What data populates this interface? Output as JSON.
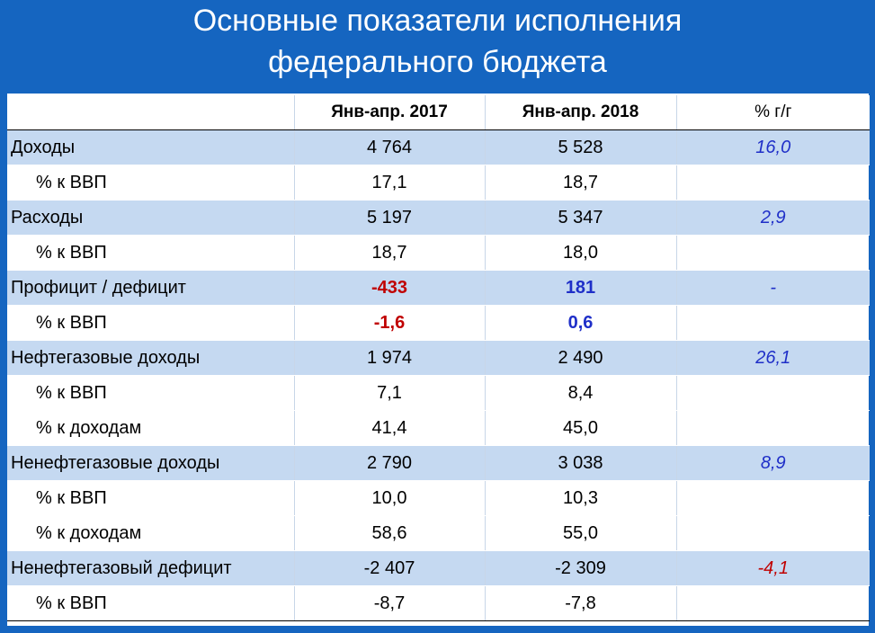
{
  "title": {
    "line1": "Основные показатели исполнения",
    "line2": "федерального бюджета"
  },
  "header": {
    "col1": "Янв-апр. 2017",
    "col2": "Янв-апр. 2018",
    "col3": "% г/г"
  },
  "rows": [
    {
      "label": "Доходы",
      "v2017": "4 764",
      "v2018": "5 528",
      "yoy": "16,0"
    },
    {
      "label": "% к ВВП",
      "v2017": "17,1",
      "v2018": "18,7",
      "yoy": ""
    },
    {
      "label": "Расходы",
      "v2017": "5 197",
      "v2018": "5 347",
      "yoy": "2,9"
    },
    {
      "label": "% к ВВП",
      "v2017": "18,7",
      "v2018": "18,0",
      "yoy": ""
    },
    {
      "label": "Профицит / дефицит",
      "v2017": "-433",
      "v2018": "181",
      "yoy": "-"
    },
    {
      "label": "% к ВВП",
      "v2017": "-1,6",
      "v2018": "0,6",
      "yoy": ""
    },
    {
      "label": "Нефтегазовые доходы",
      "v2017": "1 974",
      "v2018": "2 490",
      "yoy": "26,1"
    },
    {
      "label": "% к ВВП",
      "v2017": "7,1",
      "v2018": "8,4",
      "yoy": ""
    },
    {
      "label": "% к доходам",
      "v2017": "41,4",
      "v2018": "45,0",
      "yoy": ""
    },
    {
      "label": "Ненефтегазовые доходы",
      "v2017": "2 790",
      "v2018": "3 038",
      "yoy": "8,9"
    },
    {
      "label": "% к ВВП",
      "v2017": "10,0",
      "v2018": "10,3",
      "yoy": ""
    },
    {
      "label": "% к доходам",
      "v2017": "58,6",
      "v2018": "55,0",
      "yoy": ""
    },
    {
      "label": "Ненефтегазовый дефицит",
      "v2017": "-2 407",
      "v2018": "-2 309",
      "yoy": "-4,1"
    },
    {
      "label": "% к ВВП",
      "v2017": "-8,7",
      "v2018": "-7,8",
      "yoy": ""
    }
  ],
  "colors": {
    "background": "#1565c0",
    "band": "#c5d9f1",
    "negative": "#c00000",
    "positive": "#1f2fc8"
  }
}
